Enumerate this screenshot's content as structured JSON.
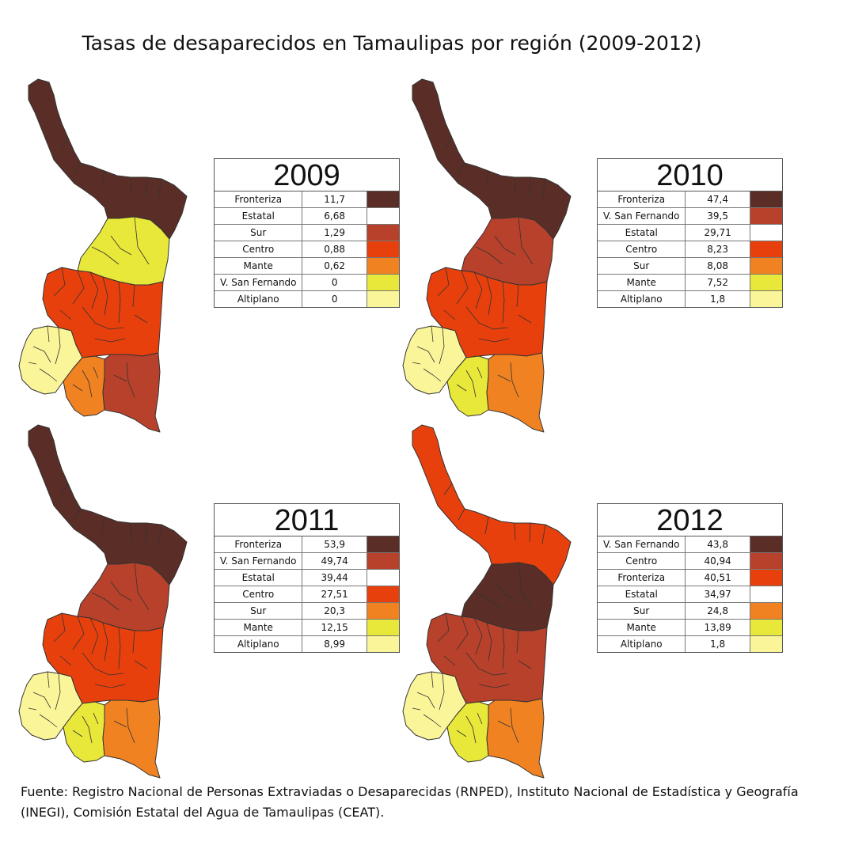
{
  "title": "Tasas de desaparecidos en Tamaulipas por región (2009-2012)",
  "source": "Fuente: Registro Nacional de Personas Extraviadas o Desaparecidas (RNPED), Instituto Nacional de Estadística y Geografía (INEGI), Comisión Estatal del Agua de Tamaulipas (CEAT).",
  "colors": {
    "class1": "#5a2e26",
    "class2": "#b8412b",
    "class3": "#ffffff",
    "class4": "#e8400c",
    "class5": "#f08222",
    "class6": "#e8e83a",
    "class7": "#fbf59a",
    "outline": "#333333"
  },
  "panels": [
    {
      "year": "2009",
      "rows": [
        {
          "region": "Fronteriza",
          "rate": "11,7",
          "color": "#5a2e26"
        },
        {
          "region": "Estatal",
          "rate": "6,68",
          "color": "#ffffff"
        },
        {
          "region": "Sur",
          "rate": "1,29",
          "color": "#b8412b"
        },
        {
          "region": "Centro",
          "rate": "0,88",
          "color": "#e8400c"
        },
        {
          "region": "Mante",
          "rate": "0,62",
          "color": "#f08222"
        },
        {
          "region": "V. San Fernando",
          "rate": "0",
          "color": "#e8e83a"
        },
        {
          "region": "Altiplano",
          "rate": "0",
          "color": "#fbf59a"
        }
      ],
      "region_colors": {
        "Fronteriza": "#5a2e26",
        "V. San Fernando": "#e8e83a",
        "Centro": "#e8400c",
        "Altiplano": "#fbf59a",
        "Mante": "#f08222",
        "Sur": "#b8412b"
      }
    },
    {
      "year": "2010",
      "rows": [
        {
          "region": "Fronteriza",
          "rate": "47,4",
          "color": "#5a2e26"
        },
        {
          "region": "V. San Fernando",
          "rate": "39,5",
          "color": "#b8412b"
        },
        {
          "region": "Estatal",
          "rate": "29,71",
          "color": "#ffffff"
        },
        {
          "region": "Centro",
          "rate": "8,23",
          "color": "#e8400c"
        },
        {
          "region": "Sur",
          "rate": "8,08",
          "color": "#f08222"
        },
        {
          "region": "Mante",
          "rate": "7,52",
          "color": "#e8e83a"
        },
        {
          "region": "Altiplano",
          "rate": "1,8",
          "color": "#fbf59a"
        }
      ],
      "region_colors": {
        "Fronteriza": "#5a2e26",
        "V. San Fernando": "#b8412b",
        "Centro": "#e8400c",
        "Altiplano": "#fbf59a",
        "Mante": "#e8e83a",
        "Sur": "#f08222"
      }
    },
    {
      "year": "2011",
      "rows": [
        {
          "region": "Fronteriza",
          "rate": "53,9",
          "color": "#5a2e26"
        },
        {
          "region": "V. San Fernando",
          "rate": "49,74",
          "color": "#b8412b"
        },
        {
          "region": "Estatal",
          "rate": "39,44",
          "color": "#ffffff"
        },
        {
          "region": "Centro",
          "rate": "27,51",
          "color": "#e8400c"
        },
        {
          "region": "Sur",
          "rate": "20,3",
          "color": "#f08222"
        },
        {
          "region": "Mante",
          "rate": "12,15",
          "color": "#e8e83a"
        },
        {
          "region": "Altiplano",
          "rate": "8,99",
          "color": "#fbf59a"
        }
      ],
      "region_colors": {
        "Fronteriza": "#5a2e26",
        "V. San Fernando": "#b8412b",
        "Centro": "#e8400c",
        "Altiplano": "#fbf59a",
        "Mante": "#e8e83a",
        "Sur": "#f08222"
      }
    },
    {
      "year": "2012",
      "rows": [
        {
          "region": "V. San Fernando",
          "rate": "43,8",
          "color": "#5a2e26"
        },
        {
          "region": "Centro",
          "rate": "40,94",
          "color": "#b8412b"
        },
        {
          "region": "Fronteriza",
          "rate": "40,51",
          "color": "#e8400c"
        },
        {
          "region": "Estatal",
          "rate": "34,97",
          "color": "#ffffff"
        },
        {
          "region": "Sur",
          "rate": "24,8",
          "color": "#f08222"
        },
        {
          "region": "Mante",
          "rate": "13,89",
          "color": "#e8e83a"
        },
        {
          "region": "Altiplano",
          "rate": "1,8",
          "color": "#fbf59a"
        }
      ],
      "region_colors": {
        "Fronteriza": "#e8400c",
        "V. San Fernando": "#5a2e26",
        "Centro": "#b8412b",
        "Altiplano": "#fbf59a",
        "Mante": "#e8e83a",
        "Sur": "#f08222"
      }
    }
  ]
}
